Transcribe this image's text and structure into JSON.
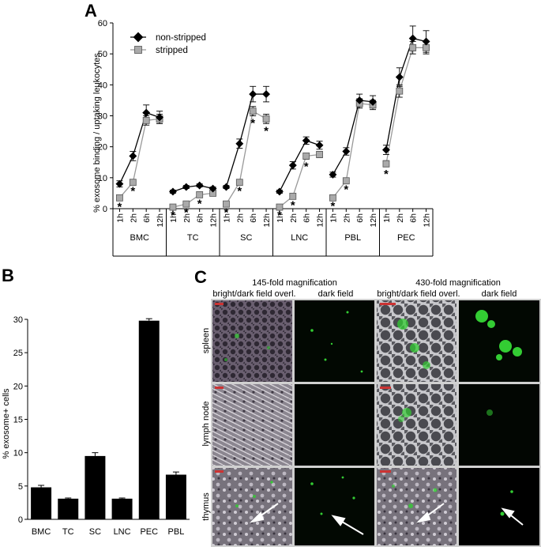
{
  "panel_labels": {
    "a": "A",
    "b": "B",
    "c": "C"
  },
  "chart_data": [
    {
      "panel": "A",
      "type": "line",
      "ylabel": "% exosome binding / uptaking leukocytes",
      "ylim": [
        0,
        60
      ],
      "yticks": [
        0,
        10,
        20,
        30,
        40,
        50,
        60
      ],
      "grid": false,
      "legend_position": "top-left",
      "time_labels": [
        "1h",
        "2h",
        "6h",
        "12h"
      ],
      "groups": [
        "BMC",
        "TC",
        "SC",
        "LNC",
        "PBL",
        "PEC"
      ],
      "significance_mark": "*",
      "series": [
        {
          "name": "non-stripped",
          "color": "#000000",
          "marker": "diamond",
          "values": [
            [
              8,
              17,
              31,
              29.5
            ],
            [
              5.5,
              7,
              7.5,
              6.5
            ],
            [
              7,
              21,
              37,
              37
            ],
            [
              5.5,
              14,
              22,
              20.5
            ],
            [
              11,
              18.5,
              35,
              34.5
            ],
            [
              19,
              42.5,
              55,
              54
            ]
          ],
          "errors": [
            [
              1,
              1.5,
              2.5,
              2
            ],
            [
              0.5,
              0.5,
              0.5,
              0.5
            ],
            [
              0.5,
              1.5,
              2.5,
              2.5
            ],
            [
              0.5,
              1.2,
              1.2,
              1.3
            ],
            [
              0.8,
              1.2,
              2,
              2
            ],
            [
              1.5,
              3,
              4,
              3.5
            ]
          ]
        },
        {
          "name": "stripped",
          "color": "#aaaaaa",
          "marker": "square",
          "values": [
            [
              3.5,
              8.5,
              28.5,
              29
            ],
            [
              0.5,
              1.5,
              4.5,
              5
            ],
            [
              1.5,
              8.5,
              31.5,
              29
            ],
            [
              0.5,
              4,
              17,
              17.5
            ],
            [
              3.5,
              9,
              34,
              33.5
            ],
            [
              14.5,
              38,
              52,
              52
            ]
          ],
          "errors": [
            [
              0.5,
              0.5,
              1.5,
              1.5
            ],
            [
              0.3,
              0.3,
              0.5,
              0.5
            ],
            [
              0.3,
              0.5,
              1.5,
              1.5
            ],
            [
              0.2,
              0.5,
              1,
              1
            ],
            [
              0.3,
              0.5,
              1.5,
              1.5
            ],
            [
              1,
              2,
              2,
              2
            ]
          ]
        }
      ],
      "stars": [
        [
          1,
          1,
          0,
          0
        ],
        [
          1,
          1,
          1,
          0
        ],
        [
          1,
          1,
          1,
          1
        ],
        [
          1,
          1,
          1,
          0
        ],
        [
          1,
          1,
          0,
          0
        ],
        [
          1,
          0,
          0,
          0
        ]
      ]
    },
    {
      "panel": "B",
      "type": "bar",
      "ylabel": "% exosome+ cells",
      "ylim": [
        0,
        30
      ],
      "yticks": [
        0,
        5,
        10,
        15,
        20,
        25,
        30
      ],
      "categories": [
        "BMC",
        "TC",
        "SC",
        "LNC",
        "PEC",
        "PBL"
      ],
      "values": [
        4.8,
        3.1,
        9.5,
        3.1,
        29.8,
        6.7
      ],
      "errors": [
        0.3,
        0.1,
        0.5,
        0.1,
        0.3,
        0.4
      ],
      "bar_color": "#000000"
    }
  ],
  "micrographs": {
    "headers": [
      "145-fold magnification",
      "430-fold magnification"
    ],
    "column_labels": [
      "bright/dark field overl.",
      "dark field",
      "bright/dark field overl.",
      "dark field"
    ],
    "row_labels": [
      "spleen",
      "lymph node",
      "thymus"
    ],
    "scale_bar_color": "#cc3333",
    "fluorescence_color": "#33cc33",
    "arrow_color": "#ffffff"
  }
}
